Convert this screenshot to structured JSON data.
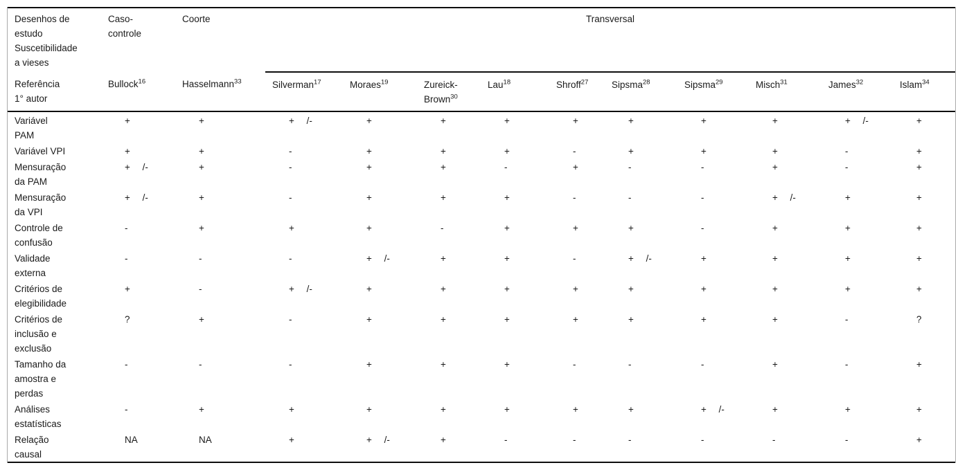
{
  "colors": {
    "rule": "#0d0d0d",
    "frame": "#a9a9a9",
    "text": "#1a1a1a",
    "background": "#ffffff"
  },
  "table": {
    "stub_header": "Desenhos de\nestudo\nSuscetibilidade\na vieses",
    "ref_header": "Referência\n1° autor",
    "design_groups": [
      {
        "label": "Caso-\ncontrole",
        "span": 1
      },
      {
        "label": "Coorte",
        "span": 1
      },
      {
        "label": "Transversal",
        "span": 10
      }
    ],
    "columns": [
      {
        "author": "Bullock",
        "ref": "16"
      },
      {
        "author": "Hasselmann",
        "ref": "33"
      },
      {
        "author": "Silverman",
        "ref": "17"
      },
      {
        "author": "Moraes",
        "ref": "19"
      },
      {
        "author": "Zureick-\nBrown",
        "ref": "30"
      },
      {
        "author": "Lau",
        "ref": "18"
      },
      {
        "author": "Shroff",
        "ref": "27"
      },
      {
        "author": "Sipsma",
        "ref": "28"
      },
      {
        "author": "Sipsma",
        "ref": "29"
      },
      {
        "author": "Misch",
        "ref": "31"
      },
      {
        "author": "James",
        "ref": "32"
      },
      {
        "author": "Islam",
        "ref": "34"
      }
    ],
    "rows": [
      {
        "label": "Variável\nPAM",
        "values": [
          "+",
          "+",
          "+ /-",
          "+",
          "+",
          "+",
          "+",
          "+",
          "+",
          "+",
          "+ /-",
          "+"
        ]
      },
      {
        "label": "Variável VPI",
        "values": [
          "+",
          "+",
          "-",
          "+",
          "+",
          "+",
          "-",
          "+",
          "+",
          "+",
          "-",
          "+"
        ]
      },
      {
        "label": "Mensuração\nda PAM",
        "values": [
          "+ /-",
          "+",
          "-",
          "+",
          "+",
          "-",
          "+",
          "-",
          "-",
          "+",
          "-",
          "+"
        ]
      },
      {
        "label": "Mensuração\nda VPI",
        "values": [
          "+ /-",
          "+",
          "-",
          "+",
          "+",
          "+",
          "-",
          "-",
          "-",
          "+ /-",
          "+",
          "+"
        ]
      },
      {
        "label": "Controle de\nconfusão",
        "values": [
          "-",
          "+",
          "+",
          "+",
          "-",
          "+",
          "+",
          "+",
          "-",
          "+",
          "+",
          "+"
        ]
      },
      {
        "label": "Validade\nexterna",
        "values": [
          "-",
          "-",
          "-",
          "+ /-",
          "+",
          "+",
          "-",
          "+ /-",
          "+",
          "+",
          "+",
          "+"
        ]
      },
      {
        "label": "Critérios de\nelegibilidade",
        "values": [
          "+",
          "-",
          "+ /-",
          "+",
          "+",
          "+",
          "+",
          "+",
          "+",
          "+",
          "+",
          "+"
        ]
      },
      {
        "label": "Critérios de\ninclusão e\nexclusão",
        "values": [
          "?",
          "+",
          "-",
          "+",
          "+",
          "+",
          "+",
          "+",
          "+",
          "+",
          "-",
          "?"
        ]
      },
      {
        "label": "Tamanho da\namostra e\nperdas",
        "values": [
          "-",
          "-",
          "-",
          "+",
          "+",
          "+",
          "-",
          "-",
          "-",
          "+",
          "-",
          "+"
        ]
      },
      {
        "label": "Análises\nestatísticas",
        "values": [
          "-",
          "+",
          "+",
          "+",
          "+",
          "+",
          "+",
          "+",
          "+ /-",
          "+",
          "+",
          "+"
        ]
      },
      {
        "label": "Relação\ncausal",
        "values": [
          "NA",
          "NA",
          "+",
          "+ /-",
          "+",
          "-",
          "-",
          "-",
          "-",
          "-",
          "-",
          "+"
        ]
      }
    ]
  }
}
